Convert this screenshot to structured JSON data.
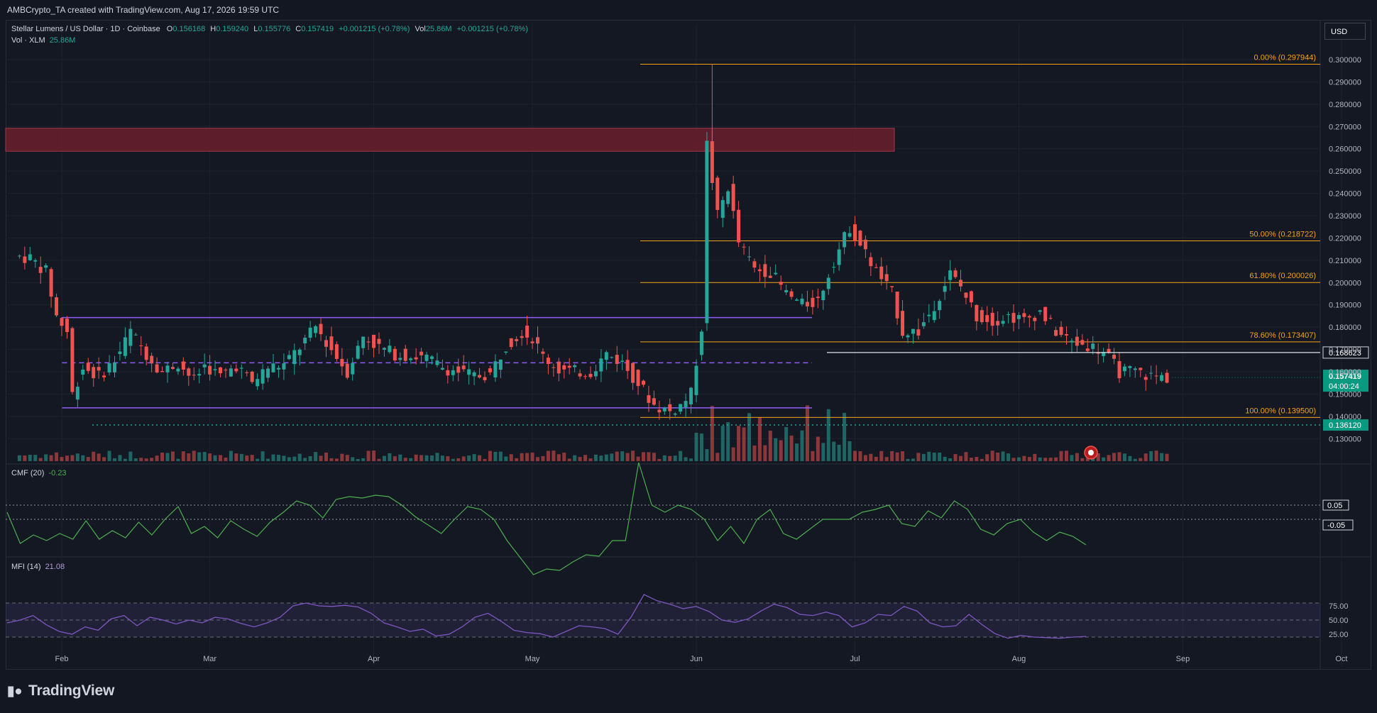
{
  "header": {
    "created_text": "AMBCrypto_TA created with TradingView.com, Aug 17, 2026 19:59 UTC",
    "currency_button": "USD"
  },
  "symbol_legend": {
    "title": "Stellar Lumens / US Dollar · 1D · Coinbase",
    "open_label": "O",
    "open": "0.156168",
    "high_label": "H",
    "high": "0.159240",
    "low_label": "L",
    "low": "0.155776",
    "close_label": "C",
    "close": "0.157419",
    "change": "+0.001215 (+0.78%)",
    "vol_label": "Vol",
    "vol": "25.86M",
    "vol_change": "+0.001215 (+0.78%)"
  },
  "vol_legend": {
    "label": "Vol · XLM",
    "value": "25.86M"
  },
  "cmf_legend": {
    "label": "CMF (20)",
    "value": "-0.23"
  },
  "mfi_legend": {
    "label": "MFI (14)",
    "value": "21.08"
  },
  "footer": {
    "brand": "TradingView"
  },
  "colors": {
    "up": "#26a69a",
    "down": "#ef5350",
    "fib": "#f7a21b",
    "range": "#8e5cf7",
    "cmf": "#4caf50",
    "mfi": "#7e57c2",
    "supply_zone": "#6b1f2c",
    "price_tag": "#089981"
  },
  "chart_data": [
    {
      "type": "candlestick",
      "title": "Stellar Lumens / US Dollar · 1D · Coinbase",
      "x_ticks": [
        "Feb",
        "Mar",
        "Apr",
        "May",
        "Jun",
        "Jul",
        "Aug",
        "Sep",
        "Oct"
      ],
      "price_ticks": [
        "0.300000",
        "0.290000",
        "0.280000",
        "0.270000",
        "0.260000",
        "0.250000",
        "0.240000",
        "0.230000",
        "0.220000",
        "0.210000",
        "0.200000",
        "0.190000",
        "0.180000",
        "0.170000",
        "0.160000",
        "0.150000",
        "0.140000",
        "0.130000"
      ],
      "ylim": [
        0.125,
        0.302
      ],
      "close_path": [
        [
          "Jan 24",
          0.212
        ],
        [
          "Jan 27",
          0.211
        ],
        [
          "Jan 30",
          0.205
        ],
        [
          "Feb 1",
          0.185
        ],
        [
          "Feb 3",
          0.178
        ],
        [
          "Feb 4",
          0.15
        ],
        [
          "Feb 6",
          0.162
        ],
        [
          "Feb 9",
          0.158
        ],
        [
          "Feb 12",
          0.165
        ],
        [
          "Feb 15",
          0.178
        ],
        [
          "Feb 18",
          0.168
        ],
        [
          "Feb 21",
          0.16
        ],
        [
          "Feb 24",
          0.164
        ],
        [
          "Feb 27",
          0.156
        ],
        [
          "Mar 1",
          0.163
        ],
        [
          "Mar 4",
          0.158
        ],
        [
          "Mar 7",
          0.163
        ],
        [
          "Mar 10",
          0.155
        ],
        [
          "Mar 13",
          0.162
        ],
        [
          "Mar 16",
          0.163
        ],
        [
          "Mar 19",
          0.171
        ],
        [
          "Mar 22",
          0.18
        ],
        [
          "Mar 25",
          0.17
        ],
        [
          "Mar 28",
          0.16
        ],
        [
          "Mar 31",
          0.176
        ],
        [
          "Apr 3",
          0.171
        ],
        [
          "Apr 6",
          0.168
        ],
        [
          "Apr 9",
          0.167
        ],
        [
          "Apr 12",
          0.166
        ],
        [
          "Apr 15",
          0.162
        ],
        [
          "Apr 18",
          0.16
        ],
        [
          "Apr 21",
          0.158
        ],
        [
          "Apr 24",
          0.159
        ],
        [
          "Apr 27",
          0.172
        ],
        [
          "Apr 30",
          0.178
        ],
        [
          "May 2",
          0.175
        ],
        [
          "May 4",
          0.167
        ],
        [
          "May 7",
          0.161
        ],
        [
          "May 10",
          0.16
        ],
        [
          "May 13",
          0.16
        ],
        [
          "May 16",
          0.168
        ],
        [
          "May 19",
          0.164
        ],
        [
          "May 22",
          0.155
        ],
        [
          "May 25",
          0.145
        ],
        [
          "May 28",
          0.142
        ],
        [
          "May 30",
          0.145
        ],
        [
          "Jun 1",
          0.15
        ],
        [
          "Jun 3",
          0.18
        ],
        [
          "Jun 4",
          0.262
        ],
        [
          "Jun 6",
          0.23
        ],
        [
          "Jun 8",
          0.243
        ],
        [
          "Jun 10",
          0.218
        ],
        [
          "Jun 13",
          0.206
        ],
        [
          "Jun 16",
          0.205
        ],
        [
          "Jun 19",
          0.195
        ],
        [
          "Jun 22",
          0.19
        ],
        [
          "Jun 25",
          0.192
        ],
        [
          "Jun 28",
          0.21
        ],
        [
          "Jul 1",
          0.225
        ],
        [
          "Jul 3",
          0.217
        ],
        [
          "Jul 6",
          0.205
        ],
        [
          "Jul 9",
          0.195
        ],
        [
          "Jul 11",
          0.178
        ],
        [
          "Jul 14",
          0.178
        ],
        [
          "Jul 17",
          0.19
        ],
        [
          "Jul 20",
          0.204
        ],
        [
          "Jul 22",
          0.198
        ],
        [
          "Jul 25",
          0.185
        ],
        [
          "Jul 28",
          0.183
        ],
        [
          "Jul 31",
          0.185
        ],
        [
          "Aug 3",
          0.183
        ],
        [
          "Aug 6",
          0.187
        ],
        [
          "Aug 9",
          0.178
        ],
        [
          "Aug 12",
          0.173
        ],
        [
          "Aug 15",
          0.172
        ],
        [
          "Aug 18",
          0.169
        ],
        [
          "Aug 21",
          0.16
        ],
        [
          "Aug 24",
          0.16
        ],
        [
          "Aug 27",
          0.158
        ],
        [
          "Aug 30",
          0.157419
        ]
      ],
      "swing_high": {
        "date": "Jun 4",
        "value": 0.297944
      },
      "fib_levels": [
        {
          "label": "0.00% (0.297944)",
          "value": 0.297944
        },
        {
          "label": "50.00% (0.218722)",
          "value": 0.218722
        },
        {
          "label": "61.80% (0.200026)",
          "value": 0.200026
        },
        {
          "label": "78.60% (0.173407)",
          "value": 0.173407
        },
        {
          "label": "100.00% (0.139500)",
          "value": 0.1395
        }
      ],
      "supply_zone": [
        0.2589,
        0.2692
      ],
      "range_high": 0.1843,
      "range_mid": 0.164,
      "range_low": 0.1438,
      "support_line": {
        "value": 0.168623,
        "label": "0.168623"
      },
      "dotted_level": {
        "value": 0.13612,
        "label": "0.136120"
      },
      "current_price": {
        "value": 0.157419,
        "label": "0.157419",
        "countdown": "04:00:24"
      }
    },
    {
      "type": "line",
      "name": "CMF (20)",
      "ylim": [
        -0.55,
        0.4
      ],
      "reference_levels": [
        {
          "label": "0.05",
          "value": 0.05
        },
        {
          "label": "-0.05",
          "value": -0.05
        }
      ],
      "values": [
        0.0,
        -0.22,
        -0.16,
        -0.2,
        -0.15,
        -0.19,
        -0.06,
        -0.19,
        -0.13,
        -0.18,
        -0.07,
        -0.16,
        -0.05,
        0.04,
        -0.15,
        -0.1,
        -0.18,
        -0.06,
        -0.12,
        -0.17,
        -0.07,
        0.0,
        0.08,
        0.05,
        -0.04,
        0.09,
        0.11,
        0.1,
        0.12,
        0.11,
        0.05,
        -0.03,
        -0.09,
        -0.15,
        -0.05,
        0.04,
        0.02,
        -0.05,
        -0.2,
        -0.32,
        -0.44,
        -0.4,
        -0.41,
        -0.35,
        -0.3,
        -0.31,
        -0.2,
        -0.2,
        0.35,
        0.05,
        0.0,
        0.05,
        0.02,
        -0.05,
        -0.2,
        -0.1,
        -0.22,
        -0.05,
        0.02,
        -0.15,
        -0.19,
        -0.12,
        -0.05,
        -0.05,
        -0.05,
        0.0,
        0.02,
        0.05,
        -0.08,
        -0.1,
        0.01,
        -0.04,
        0.08,
        0.02,
        -0.12,
        -0.16,
        -0.08,
        -0.05,
        -0.14,
        -0.2,
        -0.14,
        -0.17,
        -0.23
      ]
    },
    {
      "type": "line",
      "name": "MFI (14)",
      "ylim": [
        0,
        100
      ],
      "y_ticks": [
        "75.00",
        "50.00",
        "25.00"
      ],
      "band": [
        20,
        80
      ],
      "values": [
        45,
        50,
        58,
        42,
        30,
        25,
        38,
        32,
        52,
        58,
        40,
        55,
        50,
        43,
        50,
        45,
        55,
        52,
        44,
        38,
        45,
        55,
        75,
        80,
        75,
        74,
        76,
        73,
        62,
        45,
        38,
        30,
        34,
        22,
        25,
        38,
        55,
        62,
        48,
        32,
        28,
        26,
        20,
        30,
        40,
        38,
        35,
        25,
        55,
        95,
        84,
        78,
        70,
        74,
        65,
        50,
        46,
        52,
        66,
        78,
        72,
        60,
        58,
        64,
        58,
        38,
        45,
        60,
        58,
        74,
        66,
        45,
        38,
        40,
        60,
        42,
        26,
        18,
        23,
        20,
        19,
        18,
        20,
        21.08
      ]
    }
  ]
}
